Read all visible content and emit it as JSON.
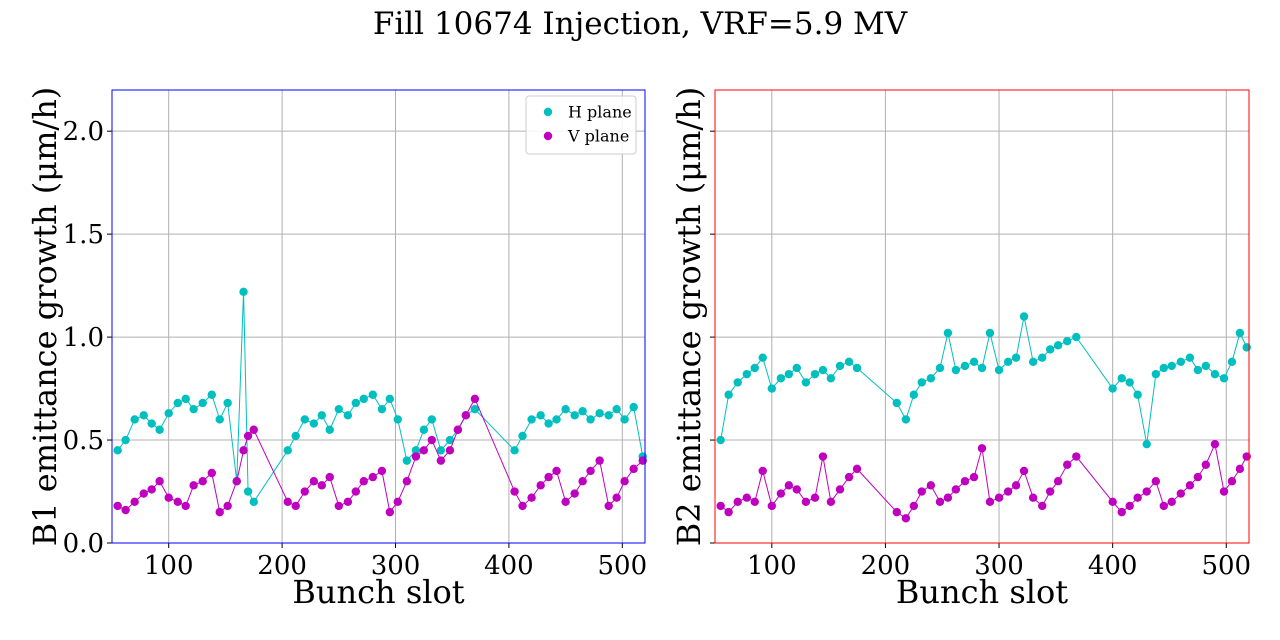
{
  "title": "Fill 10674 Injection, VRF=5.9 MV",
  "colors": {
    "h": "#00BFBF",
    "v": "#BF00BF",
    "grid": "#b0b0b0",
    "frame_left": "#0000FF",
    "frame_right": "#FF0000"
  },
  "chart_data": [
    {
      "type": "scatter",
      "xlabel": "Bunch slot",
      "ylabel": "B1 emittance growth (μm/h)",
      "xlim": [
        50,
        520
      ],
      "ylim": [
        0,
        2.2
      ],
      "xticks": [
        "100",
        "200",
        "300",
        "400",
        "500"
      ],
      "yticks": [
        "0.0",
        "0.5",
        "1.0",
        "1.5",
        "2.0"
      ],
      "grid": true,
      "legend": {
        "position": "top-right",
        "entries": [
          "H plane",
          "V plane"
        ]
      },
      "series": [
        {
          "name": "H plane",
          "x": [
            55,
            62,
            70,
            78,
            85,
            92,
            100,
            108,
            115,
            122,
            130,
            138,
            145,
            152,
            160,
            166,
            170,
            175,
            205,
            212,
            220,
            228,
            235,
            242,
            250,
            258,
            265,
            272,
            280,
            288,
            295,
            302,
            310,
            318,
            325,
            332,
            340,
            348,
            355,
            362,
            370,
            405,
            412,
            420,
            428,
            435,
            442,
            450,
            458,
            465,
            472,
            480,
            488,
            495,
            502,
            510,
            518
          ],
          "y": [
            0.45,
            0.5,
            0.6,
            0.62,
            0.58,
            0.55,
            0.63,
            0.68,
            0.7,
            0.65,
            0.68,
            0.72,
            0.6,
            0.68,
            0.3,
            1.22,
            0.25,
            0.2,
            0.45,
            0.52,
            0.6,
            0.58,
            0.62,
            0.55,
            0.65,
            0.62,
            0.68,
            0.7,
            0.72,
            0.65,
            0.7,
            0.6,
            0.4,
            0.45,
            0.55,
            0.6,
            0.45,
            0.5,
            0.55,
            0.62,
            0.65,
            0.45,
            0.52,
            0.6,
            0.62,
            0.58,
            0.6,
            0.65,
            0.62,
            0.64,
            0.6,
            0.63,
            0.62,
            0.65,
            0.6,
            0.66,
            0.42
          ]
        },
        {
          "name": "V plane",
          "x": [
            55,
            62,
            70,
            78,
            85,
            92,
            100,
            108,
            115,
            122,
            130,
            138,
            145,
            152,
            160,
            166,
            170,
            175,
            205,
            212,
            220,
            228,
            235,
            242,
            250,
            258,
            265,
            272,
            280,
            288,
            295,
            302,
            310,
            318,
            325,
            332,
            340,
            348,
            355,
            362,
            370,
            405,
            412,
            420,
            428,
            435,
            442,
            450,
            458,
            465,
            472,
            480,
            488,
            495,
            502,
            510,
            518
          ],
          "y": [
            0.18,
            0.16,
            0.2,
            0.24,
            0.26,
            0.3,
            0.22,
            0.2,
            0.18,
            0.28,
            0.3,
            0.34,
            0.15,
            0.18,
            0.3,
            0.45,
            0.52,
            0.55,
            0.2,
            0.18,
            0.25,
            0.3,
            0.28,
            0.32,
            0.18,
            0.2,
            0.25,
            0.3,
            0.32,
            0.35,
            0.15,
            0.2,
            0.3,
            0.42,
            0.45,
            0.5,
            0.4,
            0.45,
            0.55,
            0.62,
            0.7,
            0.25,
            0.18,
            0.22,
            0.28,
            0.32,
            0.35,
            0.2,
            0.24,
            0.3,
            0.35,
            0.4,
            0.18,
            0.22,
            0.3,
            0.36,
            0.4
          ]
        }
      ]
    },
    {
      "type": "scatter",
      "xlabel": "Bunch slot",
      "ylabel": "B2 emittance growth (μm/h)",
      "xlim": [
        50,
        520
      ],
      "ylim": [
        0,
        2.2
      ],
      "xticks": [
        "100",
        "200",
        "300",
        "400",
        "500"
      ],
      "yticks": [],
      "grid": true,
      "series": [
        {
          "name": "H plane",
          "x": [
            55,
            62,
            70,
            78,
            85,
            92,
            100,
            108,
            115,
            122,
            130,
            138,
            145,
            152,
            160,
            168,
            175,
            210,
            218,
            225,
            232,
            240,
            248,
            255,
            262,
            270,
            278,
            285,
            292,
            300,
            308,
            315,
            322,
            330,
            338,
            345,
            352,
            360,
            368,
            400,
            408,
            415,
            422,
            430,
            438,
            445,
            452,
            460,
            468,
            475,
            482,
            490,
            498,
            505,
            512,
            518
          ],
          "y": [
            0.5,
            0.72,
            0.78,
            0.82,
            0.85,
            0.9,
            0.75,
            0.8,
            0.82,
            0.85,
            0.78,
            0.82,
            0.84,
            0.8,
            0.86,
            0.88,
            0.85,
            0.68,
            0.6,
            0.72,
            0.78,
            0.8,
            0.85,
            1.02,
            0.84,
            0.86,
            0.88,
            0.85,
            1.02,
            0.84,
            0.88,
            0.9,
            1.1,
            0.88,
            0.9,
            0.94,
            0.96,
            0.98,
            1.0,
            0.75,
            0.8,
            0.78,
            0.72,
            0.48,
            0.82,
            0.85,
            0.86,
            0.88,
            0.9,
            0.84,
            0.86,
            0.82,
            0.8,
            0.88,
            1.02,
            0.95
          ]
        },
        {
          "name": "V plane",
          "x": [
            55,
            62,
            70,
            78,
            85,
            92,
            100,
            108,
            115,
            122,
            130,
            138,
            145,
            152,
            160,
            168,
            175,
            210,
            218,
            225,
            232,
            240,
            248,
            255,
            262,
            270,
            278,
            285,
            292,
            300,
            308,
            315,
            322,
            330,
            338,
            345,
            352,
            360,
            368,
            400,
            408,
            415,
            422,
            430,
            438,
            445,
            452,
            460,
            468,
            475,
            482,
            490,
            498,
            505,
            512,
            518
          ],
          "y": [
            0.18,
            0.15,
            0.2,
            0.22,
            0.2,
            0.35,
            0.18,
            0.24,
            0.28,
            0.26,
            0.2,
            0.22,
            0.42,
            0.2,
            0.26,
            0.32,
            0.36,
            0.15,
            0.12,
            0.18,
            0.25,
            0.28,
            0.2,
            0.22,
            0.26,
            0.3,
            0.32,
            0.46,
            0.2,
            0.22,
            0.25,
            0.28,
            0.35,
            0.22,
            0.18,
            0.25,
            0.3,
            0.38,
            0.42,
            0.2,
            0.15,
            0.18,
            0.22,
            0.25,
            0.3,
            0.18,
            0.2,
            0.24,
            0.28,
            0.32,
            0.38,
            0.48,
            0.25,
            0.3,
            0.36,
            0.42
          ]
        }
      ]
    }
  ]
}
